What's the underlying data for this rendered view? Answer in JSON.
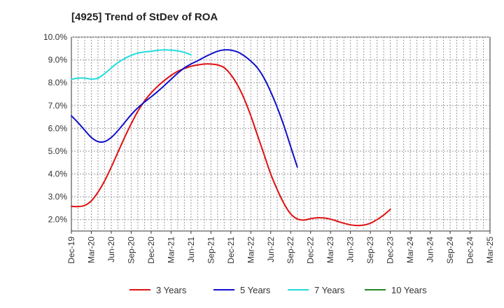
{
  "chart_data": {
    "type": "line",
    "title": "[4925]  Trend of StDev of ROA",
    "xlabel": "",
    "ylabel": "",
    "x_ticks": [
      "Dec-19",
      "Mar-20",
      "Jun-20",
      "Sep-20",
      "Dec-20",
      "Mar-21",
      "Jun-21",
      "Sep-21",
      "Dec-21",
      "Mar-22",
      "Jun-22",
      "Sep-22",
      "Dec-22",
      "Mar-23",
      "Jun-23",
      "Sep-23",
      "Dec-23",
      "Mar-24",
      "Jun-24",
      "Sep-24",
      "Dec-24",
      "Mar-25"
    ],
    "y_ticks": [
      "2.0%",
      "3.0%",
      "4.0%",
      "5.0%",
      "6.0%",
      "7.0%",
      "8.0%",
      "9.0%",
      "10.0%"
    ],
    "ylim": [
      1.5,
      10.0
    ],
    "y_unit": "%",
    "grid": true,
    "legend_position": "bottom",
    "series": [
      {
        "name": "3 Years",
        "color": "#e01010",
        "points": [
          [
            "Dec-19",
            2.58
          ],
          [
            "Jan-20",
            2.57
          ],
          [
            "Feb-20",
            2.62
          ],
          [
            "Mar-20",
            2.82
          ],
          [
            "Apr-20",
            3.2
          ],
          [
            "May-20",
            3.7
          ],
          [
            "Jun-20",
            4.3
          ],
          [
            "Jul-20",
            4.95
          ],
          [
            "Aug-20",
            5.6
          ],
          [
            "Sep-20",
            6.2
          ],
          [
            "Oct-20",
            6.75
          ],
          [
            "Nov-20",
            7.2
          ],
          [
            "Dec-20",
            7.55
          ],
          [
            "Jan-21",
            7.85
          ],
          [
            "Feb-21",
            8.1
          ],
          [
            "Mar-21",
            8.32
          ],
          [
            "Apr-21",
            8.5
          ],
          [
            "May-21",
            8.62
          ],
          [
            "Jun-21",
            8.72
          ],
          [
            "Jul-21",
            8.78
          ],
          [
            "Aug-21",
            8.82
          ],
          [
            "Sep-21",
            8.82
          ],
          [
            "Oct-21",
            8.78
          ],
          [
            "Nov-21",
            8.66
          ],
          [
            "Dec-21",
            8.35
          ],
          [
            "Jan-22",
            7.9
          ],
          [
            "Feb-22",
            7.3
          ],
          [
            "Mar-22",
            6.55
          ],
          [
            "Apr-22",
            5.7
          ],
          [
            "May-22",
            4.85
          ],
          [
            "Jun-22",
            4.0
          ],
          [
            "Jul-22",
            3.3
          ],
          [
            "Aug-22",
            2.7
          ],
          [
            "Sep-22",
            2.25
          ],
          [
            "Oct-22",
            2.03
          ],
          [
            "Nov-22",
            1.98
          ],
          [
            "Dec-22",
            2.04
          ],
          [
            "Jan-23",
            2.08
          ],
          [
            "Feb-23",
            2.07
          ],
          [
            "Mar-23",
            2.02
          ],
          [
            "Apr-23",
            1.93
          ],
          [
            "May-23",
            1.84
          ],
          [
            "Jun-23",
            1.77
          ],
          [
            "Jul-23",
            1.74
          ],
          [
            "Aug-23",
            1.76
          ],
          [
            "Sep-23",
            1.84
          ],
          [
            "Oct-23",
            2.0
          ],
          [
            "Nov-23",
            2.2
          ],
          [
            "Dec-23",
            2.45
          ]
        ]
      },
      {
        "name": "5 Years",
        "color": "#1010cc",
        "points": [
          [
            "Dec-19",
            6.55
          ],
          [
            "Jan-20",
            6.25
          ],
          [
            "Feb-20",
            5.92
          ],
          [
            "Mar-20",
            5.6
          ],
          [
            "Apr-20",
            5.42
          ],
          [
            "May-20",
            5.42
          ],
          [
            "Jun-20",
            5.6
          ],
          [
            "Jul-20",
            5.9
          ],
          [
            "Aug-20",
            6.25
          ],
          [
            "Sep-20",
            6.6
          ],
          [
            "Oct-20",
            6.9
          ],
          [
            "Nov-20",
            7.15
          ],
          [
            "Dec-20",
            7.38
          ],
          [
            "Jan-21",
            7.62
          ],
          [
            "Feb-21",
            7.88
          ],
          [
            "Mar-21",
            8.15
          ],
          [
            "Apr-21",
            8.42
          ],
          [
            "May-21",
            8.65
          ],
          [
            "Jun-21",
            8.82
          ],
          [
            "Jul-21",
            8.96
          ],
          [
            "Aug-21",
            9.12
          ],
          [
            "Sep-21",
            9.26
          ],
          [
            "Oct-21",
            9.38
          ],
          [
            "Nov-21",
            9.44
          ],
          [
            "Dec-21",
            9.43
          ],
          [
            "Jan-22",
            9.35
          ],
          [
            "Feb-22",
            9.18
          ],
          [
            "Mar-22",
            8.95
          ],
          [
            "Apr-22",
            8.65
          ],
          [
            "May-22",
            8.2
          ],
          [
            "Jun-22",
            7.6
          ],
          [
            "Jul-22",
            6.9
          ],
          [
            "Aug-22",
            6.1
          ],
          [
            "Sep-22",
            5.2
          ],
          [
            "Oct-22",
            4.3
          ]
        ]
      },
      {
        "name": "7 Years",
        "color": "#22dddd",
        "points": [
          [
            "Dec-19",
            8.15
          ],
          [
            "Jan-20",
            8.2
          ],
          [
            "Feb-20",
            8.2
          ],
          [
            "Mar-20",
            8.16
          ],
          [
            "Apr-20",
            8.2
          ],
          [
            "May-20",
            8.4
          ],
          [
            "Jun-20",
            8.65
          ],
          [
            "Jul-20",
            8.88
          ],
          [
            "Aug-20",
            9.06
          ],
          [
            "Sep-20",
            9.2
          ],
          [
            "Oct-20",
            9.3
          ],
          [
            "Nov-20",
            9.35
          ],
          [
            "Dec-20",
            9.38
          ],
          [
            "Jan-21",
            9.42
          ],
          [
            "Feb-21",
            9.44
          ],
          [
            "Mar-21",
            9.43
          ],
          [
            "Apr-21",
            9.4
          ],
          [
            "May-21",
            9.33
          ],
          [
            "Jun-21",
            9.22
          ]
        ]
      },
      {
        "name": "10 Years",
        "color": "#228822",
        "points": []
      }
    ]
  }
}
